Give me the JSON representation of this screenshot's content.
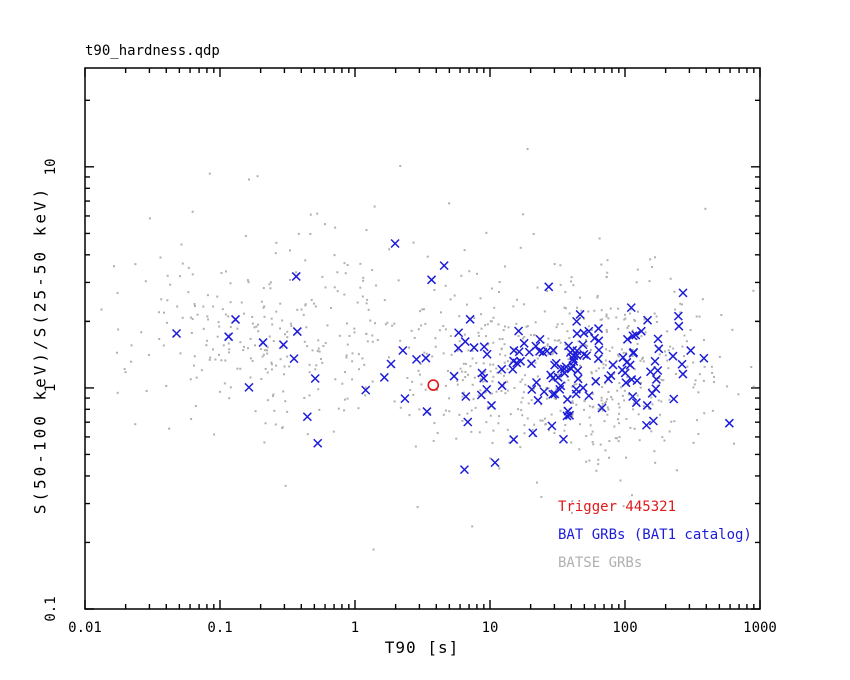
{
  "chart_data": {
    "type": "scatter",
    "title": "t90_hardness.qdp",
    "xlabel": "T90 [s]",
    "ylabel": "S(50-100 keV)/S(25-50 keV)",
    "xscale": "log",
    "yscale": "log",
    "xlim": [
      0.01,
      1000
    ],
    "ylim": [
      0.1,
      28
    ],
    "grid": false,
    "background": "#ffffff",
    "axis_color": "#000000",
    "xticks": [
      {
        "value": 0.01,
        "label": "0.01"
      },
      {
        "value": 0.1,
        "label": "0.1"
      },
      {
        "value": 1,
        "label": "1"
      },
      {
        "value": 10,
        "label": "10"
      },
      {
        "value": 100,
        "label": "100"
      },
      {
        "value": 1000,
        "label": "1000"
      }
    ],
    "yticks": [
      {
        "value": 0.1,
        "label": "0.1"
      },
      {
        "value": 1,
        "label": "1"
      },
      {
        "value": 10,
        "label": "10"
      }
    ],
    "legend": {
      "position": "inside-bottom-right"
    },
    "cluster_units": "log10",
    "series": [
      {
        "name": "Trigger 445321",
        "marker": "circle",
        "color": "#e01818",
        "points": [
          [
            3.8,
            1.03
          ]
        ]
      },
      {
        "name": "BAT GRBs (BAT1 catalog)",
        "marker": "x",
        "color": "#1c1cd8",
        "seed": 41,
        "clusters": [
          {
            "count": 130,
            "log10x_mean": 1.72,
            "log10x_sigma": 0.45,
            "log10y_mean": 0.1,
            "log10y_sigma": 0.14
          },
          {
            "count": 14,
            "log10x_mean": 0.3,
            "log10x_sigma": 0.45,
            "log10y_mean": 0.2,
            "log10y_sigma": 0.22
          },
          {
            "count": 9,
            "log10x_mean": -0.8,
            "log10x_sigma": 0.35,
            "log10y_mean": 0.18,
            "log10y_sigma": 0.1
          },
          {
            "count": 5,
            "log10x_mean": 0.7,
            "log10x_sigma": 0.5,
            "log10y_mean": -0.28,
            "log10y_sigma": 0.1
          }
        ]
      },
      {
        "name": "BATSE GRBs",
        "marker": "dot",
        "color": "#b0b0b0",
        "seed": 7,
        "clusters": [
          {
            "count": 270,
            "log10x_mean": -0.6,
            "log10x_sigma": 0.55,
            "log10y_mean": 0.25,
            "log10y_sigma": 0.22
          },
          {
            "count": 560,
            "log10x_mean": 1.55,
            "log10x_sigma": 0.58,
            "log10y_mean": 0.1,
            "log10y_sigma": 0.21
          },
          {
            "count": 50,
            "log10x_mean": 0.5,
            "log10x_sigma": 1.0,
            "log10y_mean": 0.3,
            "log10y_sigma": 0.5
          }
        ]
      }
    ]
  }
}
